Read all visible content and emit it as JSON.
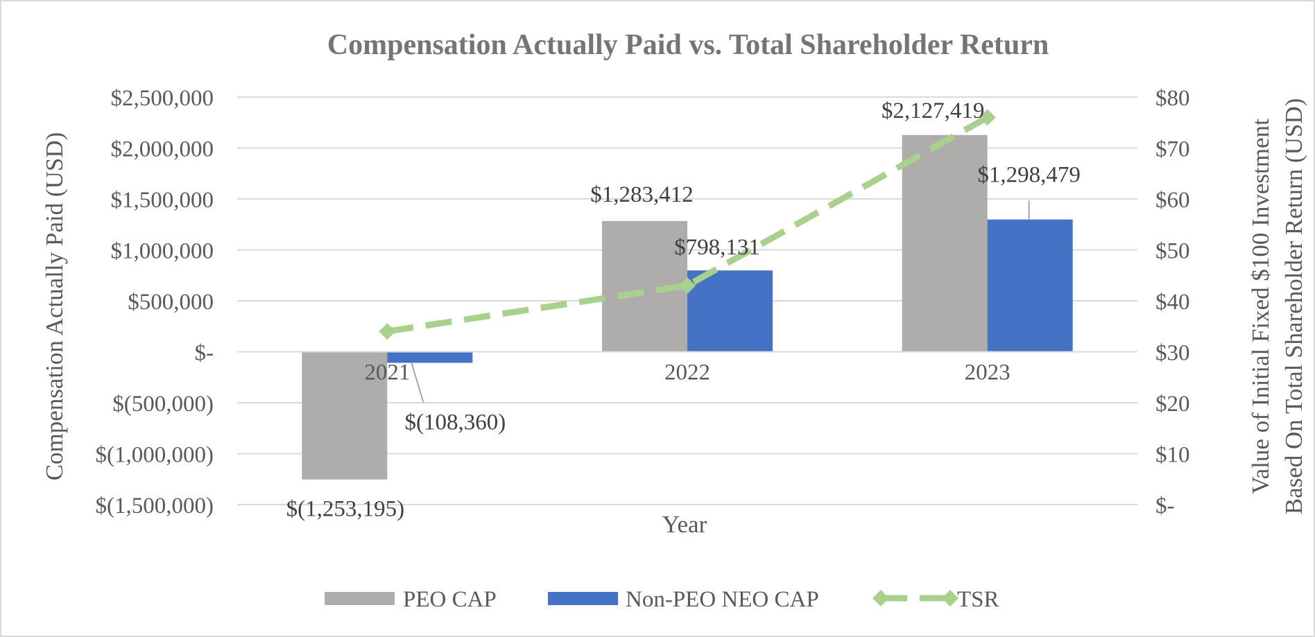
{
  "chart_data": {
    "type": "bar",
    "title": "Compensation Actually Paid vs. Total Shareholder Return",
    "xlabel": "Year",
    "ylabel": "Compensation Actually Paid (USD)",
    "y2label_lines": [
      "Value of Initial Fixed $100 Investment",
      "Based On Total Shareholder Return (USD)"
    ],
    "categories": [
      "2021",
      "2022",
      "2023"
    ],
    "ylim": [
      -1500000,
      2500000
    ],
    "y_ticks": [
      {
        "value": 2500000,
        "label": "$2,500,000"
      },
      {
        "value": 2000000,
        "label": "$2,000,000"
      },
      {
        "value": 1500000,
        "label": "$1,500,000"
      },
      {
        "value": 1000000,
        "label": "$1,000,000"
      },
      {
        "value": 500000,
        "label": "$500,000"
      },
      {
        "value": 0,
        "label": "$-"
      },
      {
        "value": -500000,
        "label": "$(500,000)"
      },
      {
        "value": -1000000,
        "label": "$(1,000,000)"
      },
      {
        "value": -1500000,
        "label": "$(1,500,000)"
      }
    ],
    "y2lim": [
      0,
      80
    ],
    "y2_ticks": [
      {
        "value": 80,
        "label": "$80"
      },
      {
        "value": 70,
        "label": "$70"
      },
      {
        "value": 60,
        "label": "$60"
      },
      {
        "value": 50,
        "label": "$50"
      },
      {
        "value": 40,
        "label": "$40"
      },
      {
        "value": 30,
        "label": "$30"
      },
      {
        "value": 20,
        "label": "$20"
      },
      {
        "value": 10,
        "label": "$10"
      },
      {
        "value": 0,
        "label": "$-"
      }
    ],
    "grid": true,
    "legend_position": "bottom",
    "series": [
      {
        "name": "PEO CAP",
        "kind": "bar",
        "color": "#aeadab",
        "values": [
          -1253195,
          1283412,
          2127419
        ],
        "labels": [
          "$(1,253,195)",
          "$1,283,412",
          "$2,127,419"
        ]
      },
      {
        "name": "Non-PEO NEO CAP",
        "kind": "bar",
        "color": "#4472c4",
        "values": [
          -108360,
          798131,
          1298479
        ],
        "labels": [
          "$(108,360)",
          "$798,131",
          "$1,298,479"
        ]
      },
      {
        "name": "TSR",
        "kind": "line",
        "axis": "secondary",
        "color": "#a9d18e",
        "values": [
          34,
          43,
          76
        ]
      }
    ]
  }
}
